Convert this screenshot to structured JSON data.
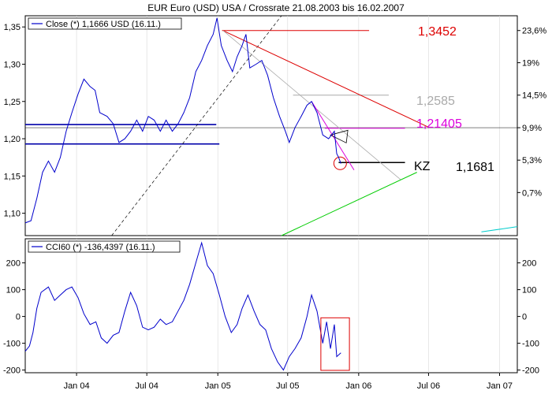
{
  "title": "EUR Euro (USD) USA / Crossrate 21.08.2003 bis 16.02.2007",
  "colors": {
    "price_line": "#0000cc",
    "red_trend": "#dd0000",
    "pink_level": "#dd00dd",
    "gray_level": "#aaaaaa",
    "green_line": "#00cc00",
    "cyan_line": "#00cccc",
    "horizontal_blue": "#0000aa",
    "dotted_line": "#000000",
    "red_box": "#dd0000"
  },
  "chart_data": [
    {
      "type": "line",
      "panel": "price",
      "legend": "Close (*) 1,1666 USD (16.11.)",
      "x_ticks": [
        "Jan 04",
        "Jul 04",
        "Jan 05",
        "Jul 05",
        "Jan 06",
        "Jul 06",
        "Jan 07"
      ],
      "xlim": [
        "2003-08-21",
        "2007-02-16"
      ],
      "y_left_ticks": [
        "1,35",
        "1,30",
        "1,25",
        "1,20",
        "1,15",
        "1,10"
      ],
      "y_left_values": [
        1.35,
        1.3,
        1.25,
        1.2,
        1.15,
        1.1
      ],
      "y_right_ticks": [
        "23,6%",
        "19%",
        "14,5%",
        "9,9%",
        "5,3%",
        "0,7%"
      ],
      "y_right_values": [
        1.3452,
        1.302,
        1.2585,
        1.2148,
        1.1713,
        1.1278
      ],
      "ylim": [
        1.07,
        1.365
      ],
      "series": [
        {
          "values": [
            [
              "2003-08-21",
              1.087
            ],
            [
              "2003-09-05",
              1.09
            ],
            [
              "2003-09-20",
              1.12
            ],
            [
              "2003-10-05",
              1.155
            ],
            [
              "2003-10-20",
              1.17
            ],
            [
              "2003-11-05",
              1.155
            ],
            [
              "2003-11-20",
              1.175
            ],
            [
              "2003-12-05",
              1.21
            ],
            [
              "2003-12-20",
              1.235
            ],
            [
              "2004-01-05",
              1.26
            ],
            [
              "2004-01-20",
              1.28
            ],
            [
              "2004-02-05",
              1.27
            ],
            [
              "2004-02-18",
              1.265
            ],
            [
              "2004-03-01",
              1.235
            ],
            [
              "2004-03-20",
              1.23
            ],
            [
              "2004-04-05",
              1.22
            ],
            [
              "2004-04-20",
              1.195
            ],
            [
              "2004-05-05",
              1.2
            ],
            [
              "2004-05-20",
              1.21
            ],
            [
              "2004-06-05",
              1.225
            ],
            [
              "2004-06-20",
              1.21
            ],
            [
              "2004-07-05",
              1.23
            ],
            [
              "2004-07-20",
              1.225
            ],
            [
              "2004-08-05",
              1.21
            ],
            [
              "2004-08-20",
              1.225
            ],
            [
              "2004-09-05",
              1.21
            ],
            [
              "2004-09-20",
              1.22
            ],
            [
              "2004-10-05",
              1.235
            ],
            [
              "2004-10-20",
              1.255
            ],
            [
              "2004-11-05",
              1.29
            ],
            [
              "2004-11-20",
              1.305
            ],
            [
              "2004-12-05",
              1.325
            ],
            [
              "2004-12-20",
              1.34
            ],
            [
              "2004-12-30",
              1.362
            ],
            [
              "2005-01-10",
              1.325
            ],
            [
              "2005-01-25",
              1.305
            ],
            [
              "2005-02-08",
              1.29
            ],
            [
              "2005-02-20",
              1.31
            ],
            [
              "2005-03-05",
              1.325
            ],
            [
              "2005-03-15",
              1.34
            ],
            [
              "2005-03-25",
              1.295
            ],
            [
              "2005-04-10",
              1.3
            ],
            [
              "2005-04-25",
              1.305
            ],
            [
              "2005-05-10",
              1.285
            ],
            [
              "2005-05-25",
              1.255
            ],
            [
              "2005-06-10",
              1.23
            ],
            [
              "2005-06-25",
              1.21
            ],
            [
              "2005-07-05",
              1.195
            ],
            [
              "2005-07-20",
              1.215
            ],
            [
              "2005-08-05",
              1.23
            ],
            [
              "2005-08-20",
              1.245
            ],
            [
              "2005-09-01",
              1.25
            ],
            [
              "2005-09-15",
              1.235
            ],
            [
              "2005-09-30",
              1.205
            ],
            [
              "2005-10-15",
              1.2
            ],
            [
              "2005-10-30",
              1.21
            ],
            [
              "2005-11-05",
              1.18
            ],
            [
              "2005-11-10",
              1.175
            ],
            [
              "2005-11-16",
              1.1666
            ]
          ]
        }
      ],
      "annotations": [
        {
          "text": "1,3452",
          "value": 1.3452,
          "color": "#dd0000"
        },
        {
          "text": "1,2585",
          "value": 1.2585,
          "color": "#aaaaaa"
        },
        {
          "text": "1,21405",
          "value": 1.21405,
          "color": "#dd00dd"
        },
        {
          "text": "KZ",
          "color": "#000000"
        },
        {
          "text": "1,1681",
          "value": 1.1681,
          "color": "#000000"
        }
      ]
    },
    {
      "type": "line",
      "panel": "indicator",
      "legend": "CCI60 (*) -136,4397 (16.11.)",
      "y_ticks": [
        "200",
        "100",
        "0",
        "-100",
        "-200"
      ],
      "y_values": [
        200,
        100,
        0,
        -100,
        -200
      ],
      "ylim": [
        -210,
        290
      ],
      "series": [
        {
          "values": [
            [
              "2003-08-21",
              -130
            ],
            [
              "2003-09-01",
              -110
            ],
            [
              "2003-09-10",
              -60
            ],
            [
              "2003-09-20",
              30
            ],
            [
              "2003-10-01",
              90
            ],
            [
              "2003-10-20",
              110
            ],
            [
              "2003-11-05",
              60
            ],
            [
              "2003-11-20",
              80
            ],
            [
              "2003-12-05",
              100
            ],
            [
              "2003-12-20",
              110
            ],
            [
              "2004-01-05",
              70
            ],
            [
              "2004-01-20",
              10
            ],
            [
              "2004-02-05",
              -30
            ],
            [
              "2004-02-20",
              -20
            ],
            [
              "2004-03-05",
              -80
            ],
            [
              "2004-03-20",
              -100
            ],
            [
              "2004-04-05",
              -70
            ],
            [
              "2004-04-20",
              -60
            ],
            [
              "2004-05-05",
              20
            ],
            [
              "2004-05-20",
              90
            ],
            [
              "2004-06-05",
              40
            ],
            [
              "2004-06-20",
              -40
            ],
            [
              "2004-07-05",
              -50
            ],
            [
              "2004-07-20",
              -40
            ],
            [
              "2004-08-05",
              -10
            ],
            [
              "2004-08-20",
              -30
            ],
            [
              "2004-09-05",
              -20
            ],
            [
              "2004-09-20",
              20
            ],
            [
              "2004-10-05",
              60
            ],
            [
              "2004-10-20",
              120
            ],
            [
              "2004-11-05",
              200
            ],
            [
              "2004-11-20",
              275
            ],
            [
              "2004-12-05",
              190
            ],
            [
              "2004-12-20",
              160
            ],
            [
              "2005-01-05",
              80
            ],
            [
              "2005-01-20",
              0
            ],
            [
              "2005-02-05",
              -60
            ],
            [
              "2005-02-20",
              -30
            ],
            [
              "2005-03-05",
              30
            ],
            [
              "2005-03-20",
              80
            ],
            [
              "2005-04-05",
              20
            ],
            [
              "2005-04-20",
              -30
            ],
            [
              "2005-05-05",
              -50
            ],
            [
              "2005-05-20",
              -120
            ],
            [
              "2005-06-05",
              -170
            ],
            [
              "2005-06-20",
              -200
            ],
            [
              "2005-07-05",
              -150
            ],
            [
              "2005-07-20",
              -120
            ],
            [
              "2005-08-05",
              -80
            ],
            [
              "2005-08-20",
              0
            ],
            [
              "2005-09-01",
              80
            ],
            [
              "2005-09-15",
              20
            ],
            [
              "2005-09-30",
              -100
            ],
            [
              "2005-10-10",
              -20
            ],
            [
              "2005-10-20",
              -120
            ],
            [
              "2005-10-30",
              -30
            ],
            [
              "2005-11-05",
              -150
            ],
            [
              "2005-11-16",
              -136
            ]
          ]
        }
      ]
    }
  ]
}
